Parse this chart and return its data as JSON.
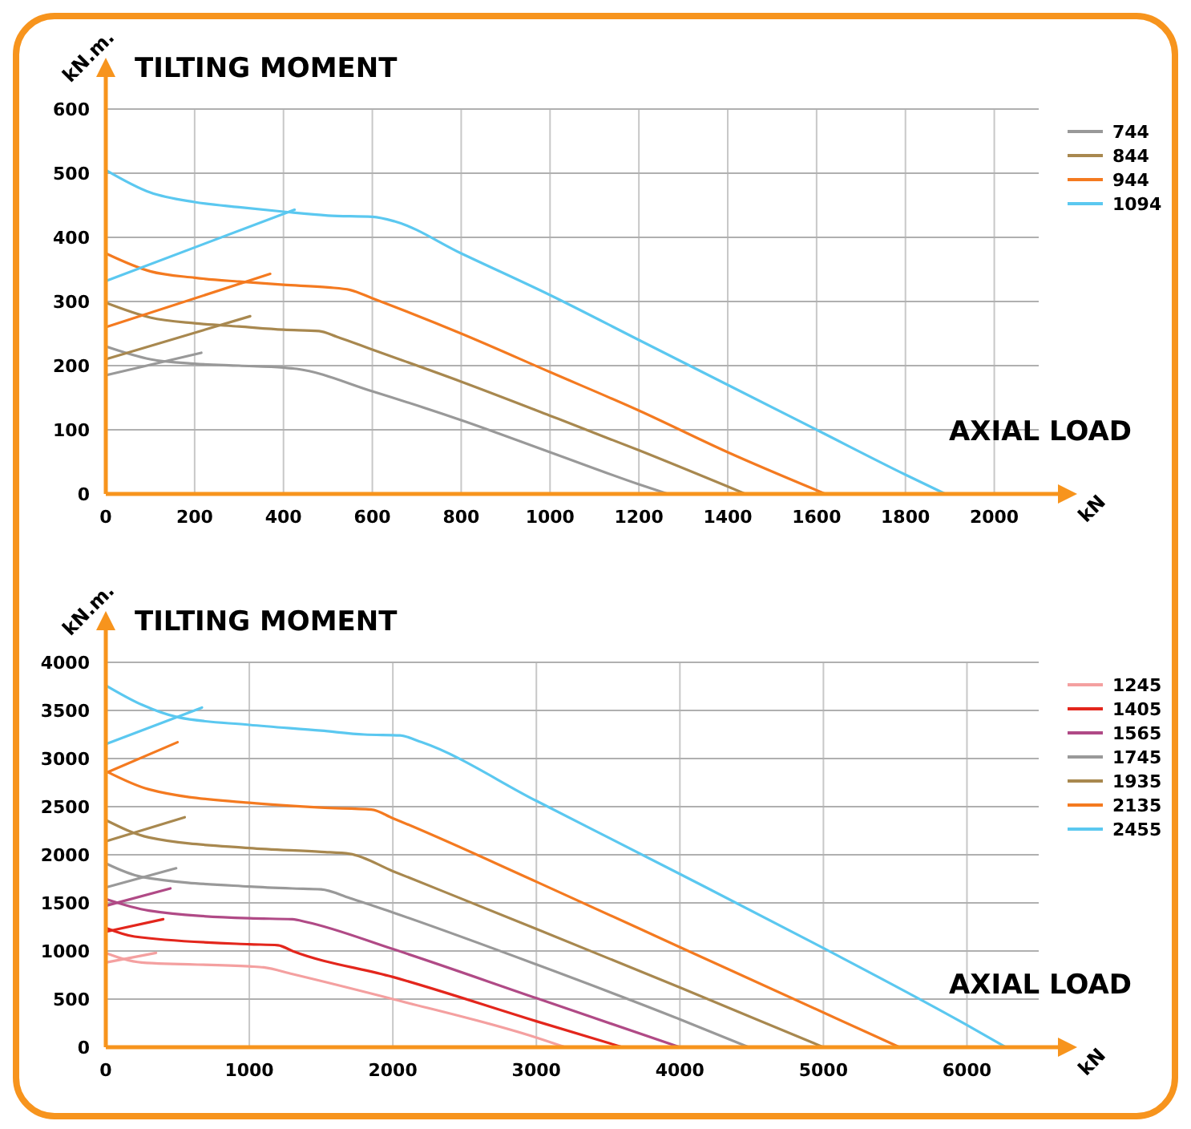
{
  "chart_data": [
    {
      "type": "line",
      "title": "TILTING MOMENT",
      "xlabel": "kN",
      "ylabel": "kN.m.",
      "annotations": [
        "AXIAL LOAD"
      ],
      "xlim": [
        0,
        2100
      ],
      "xticks": [
        0,
        200,
        400,
        600,
        800,
        1000,
        1200,
        1400,
        1600,
        1800,
        2000
      ],
      "ylim": [
        0,
        600
      ],
      "yticks": [
        0,
        100,
        200,
        300,
        400,
        500,
        600
      ],
      "grid": true,
      "legend": "right",
      "line_style": "solid",
      "marker": "none",
      "series": [
        {
          "name": "744",
          "color": "#999999",
          "x": [
            0,
            100,
            200,
            300,
            400,
            430,
            600,
            800,
            1000,
            1200,
            1265
          ],
          "values": [
            230,
            210,
            203,
            200,
            197,
            195,
            160,
            115,
            65,
            15,
            0
          ]
        },
        {
          "name": "844",
          "color": "#a8884f",
          "x": [
            0,
            100,
            200,
            300,
            400,
            480,
            520,
            600,
            800,
            1000,
            1200,
            1440
          ],
          "values": [
            298,
            275,
            266,
            261,
            256,
            254,
            245,
            225,
            175,
            122,
            68,
            0
          ]
        },
        {
          "name": "944",
          "color": "#f47a20",
          "x": [
            0,
            100,
            200,
            300,
            400,
            500,
            550,
            600,
            800,
            1000,
            1200,
            1400,
            1620
          ],
          "values": [
            375,
            347,
            337,
            331,
            326,
            322,
            318,
            305,
            250,
            190,
            130,
            65,
            0
          ]
        },
        {
          "name": "1094",
          "color": "#5bc8f0",
          "x": [
            0,
            100,
            200,
            300,
            400,
            500,
            600,
            650,
            800,
            1000,
            1200,
            1400,
            1600,
            1800,
            1890
          ],
          "values": [
            505,
            470,
            455,
            447,
            440,
            434,
            432,
            425,
            375,
            310,
            240,
            170,
            100,
            30,
            0
          ]
        },
        {
          "color": "#999999",
          "x": [
            0,
            215
          ],
          "values": [
            185,
            220
          ]
        },
        {
          "color": "#a8884f",
          "x": [
            0,
            325
          ],
          "values": [
            210,
            277
          ]
        },
        {
          "color": "#f47a20",
          "x": [
            0,
            370
          ],
          "values": [
            260,
            343
          ]
        },
        {
          "color": "#5bc8f0",
          "x": [
            0,
            425
          ],
          "values": [
            332,
            443
          ]
        }
      ]
    },
    {
      "type": "line",
      "title": "TILTING MOMENT",
      "xlabel": "kN",
      "ylabel": "kN.m.",
      "annotations": [
        "AXIAL LOAD"
      ],
      "xlim": [
        0,
        6500
      ],
      "xticks": [
        0,
        1000,
        2000,
        3000,
        4000,
        5000,
        6000
      ],
      "ylim": [
        0,
        4000
      ],
      "yticks": [
        0,
        500,
        1000,
        1500,
        2000,
        2500,
        3000,
        3500,
        4000
      ],
      "grid": true,
      "legend": "right",
      "line_style": "solid",
      "marker": "none",
      "series": [
        {
          "name": "1245",
          "color": "#f4a0a0",
          "x": [
            0,
            250,
            1000,
            1100,
            1300,
            2000,
            3000,
            3200
          ],
          "values": [
            980,
            880,
            840,
            830,
            760,
            500,
            100,
            0
          ]
        },
        {
          "name": "1405",
          "color": "#e3261c",
          "x": [
            0,
            200,
            1000,
            1200,
            1300,
            2000,
            3000,
            3600
          ],
          "values": [
            1240,
            1150,
            1070,
            1060,
            1000,
            730,
            270,
            0
          ]
        },
        {
          "name": "1565",
          "color": "#b04a86",
          "x": [
            0,
            300,
            1000,
            1300,
            1400,
            2000,
            3000,
            4000
          ],
          "values": [
            1540,
            1420,
            1340,
            1330,
            1300,
            1020,
            510,
            0
          ]
        },
        {
          "name": "1745",
          "color": "#999999",
          "x": [
            0,
            250,
            1000,
            1300,
            1500,
            1700,
            2000,
            3000,
            4000,
            4480
          ],
          "values": [
            1910,
            1770,
            1670,
            1650,
            1640,
            1550,
            1400,
            860,
            290,
            0
          ]
        },
        {
          "name": "1935",
          "color": "#a8884f",
          "x": [
            0,
            300,
            1000,
            1500,
            1700,
            2000,
            3000,
            4000,
            5000
          ],
          "values": [
            2360,
            2180,
            2070,
            2030,
            2010,
            1830,
            1230,
            620,
            0
          ]
        },
        {
          "name": "2135",
          "color": "#f47a20",
          "x": [
            0,
            300,
            1000,
            1500,
            1850,
            2000,
            3000,
            4000,
            5000,
            5530
          ],
          "values": [
            2870,
            2680,
            2540,
            2490,
            2470,
            2380,
            1720,
            1040,
            360,
            0
          ]
        },
        {
          "name": "2455",
          "color": "#5bc8f0",
          "x": [
            0,
            250,
            500,
            1000,
            1500,
            1800,
            2050,
            2200,
            3000,
            4000,
            5000,
            6000,
            6270
          ],
          "values": [
            3760,
            3560,
            3430,
            3350,
            3290,
            3250,
            3240,
            3170,
            2560,
            1800,
            1030,
            230,
            0
          ]
        },
        {
          "color": "#f4a0a0",
          "x": [
            0,
            350
          ],
          "values": [
            880,
            980
          ]
        },
        {
          "color": "#e3261c",
          "x": [
            0,
            400
          ],
          "values": [
            1200,
            1330
          ]
        },
        {
          "color": "#b04a86",
          "x": [
            0,
            450
          ],
          "values": [
            1470,
            1650
          ]
        },
        {
          "color": "#999999",
          "x": [
            0,
            490
          ],
          "values": [
            1660,
            1860
          ]
        },
        {
          "color": "#a8884f",
          "x": [
            0,
            550
          ],
          "values": [
            2140,
            2390
          ]
        },
        {
          "color": "#f47a20",
          "x": [
            0,
            500
          ],
          "values": [
            2850,
            3170
          ]
        },
        {
          "color": "#5bc8f0",
          "x": [
            0,
            670
          ],
          "values": [
            3150,
            3530
          ]
        }
      ]
    }
  ]
}
